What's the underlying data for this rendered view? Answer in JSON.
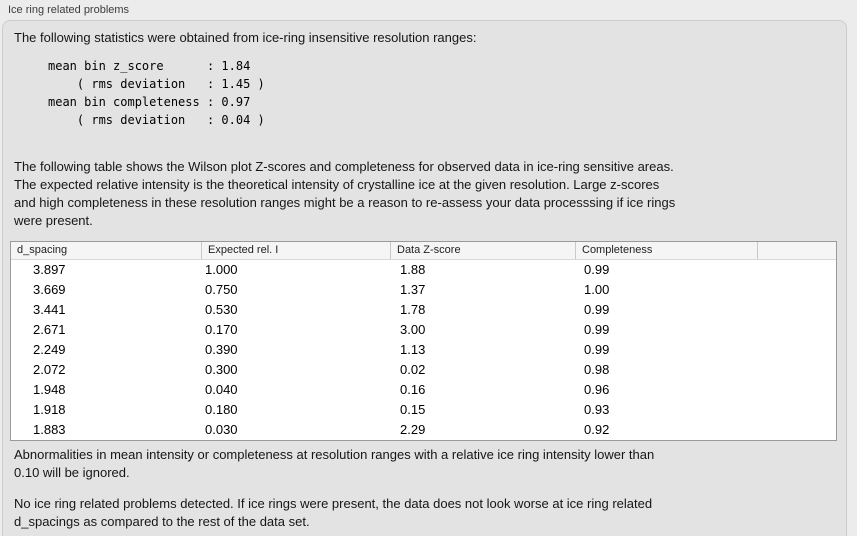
{
  "panel": {
    "title": "Ice ring related problems"
  },
  "intro": {
    "text": "The following statistics were obtained from ice-ring insensitive resolution ranges:",
    "stats_block": "mean bin z_score      : 1.84\n    ( rms deviation   : 1.45 )\nmean bin completeness : 0.97\n    ( rms deviation   : 0.04 )",
    "stats": {
      "mean_bin_z_score": "1.84",
      "z_score_rms_deviation": "1.45",
      "mean_bin_completeness": "0.97",
      "completeness_rms_deviation": "0.04"
    }
  },
  "table_description": "The following table shows the Wilson plot Z-scores and completeness for observed data in ice-ring sensitive areas.\nThe expected relative intensity is the theoretical intensity of crystalline ice at the given resolution. Large z-scores\nand high completeness in these resolution ranges might be a reason to re-assess your data processsing if ice rings\nwere present.",
  "table": {
    "columns": [
      "d_spacing",
      "Expected rel. I",
      "Data Z-score",
      "Completeness",
      ""
    ],
    "rows": [
      [
        "3.897",
        "1.000",
        "1.88",
        "0.99"
      ],
      [
        "3.669",
        "0.750",
        "1.37",
        "1.00"
      ],
      [
        "3.441",
        "0.530",
        "1.78",
        "0.99"
      ],
      [
        "2.671",
        "0.170",
        "3.00",
        "0.99"
      ],
      [
        "2.249",
        "0.390",
        "1.13",
        "0.99"
      ],
      [
        "2.072",
        "0.300",
        "0.02",
        "0.98"
      ],
      [
        "1.948",
        "0.040",
        "0.16",
        "0.96"
      ],
      [
        "1.918",
        "0.180",
        "0.15",
        "0.93"
      ],
      [
        "1.883",
        "0.030",
        "2.29",
        "0.92"
      ]
    ]
  },
  "notes": {
    "ignore_note": "Abnormalities in mean intensity or completeness at resolution ranges with a relative ice ring intensity lower than\n0.10 will be ignored.",
    "conclusion": "No ice ring related problems detected. If ice rings were present, the data does not look worse at ice ring related\nd_spacings as compared to the rest of the data set."
  },
  "colors": {
    "outer_background": "#ececec",
    "panel_background": "#e3e3e3",
    "panel_border": "#cdcdcd",
    "table_background": "#ffffff",
    "table_border": "#9a9a9a",
    "table_header_background": "#f5f5f5",
    "text": "#161616"
  }
}
